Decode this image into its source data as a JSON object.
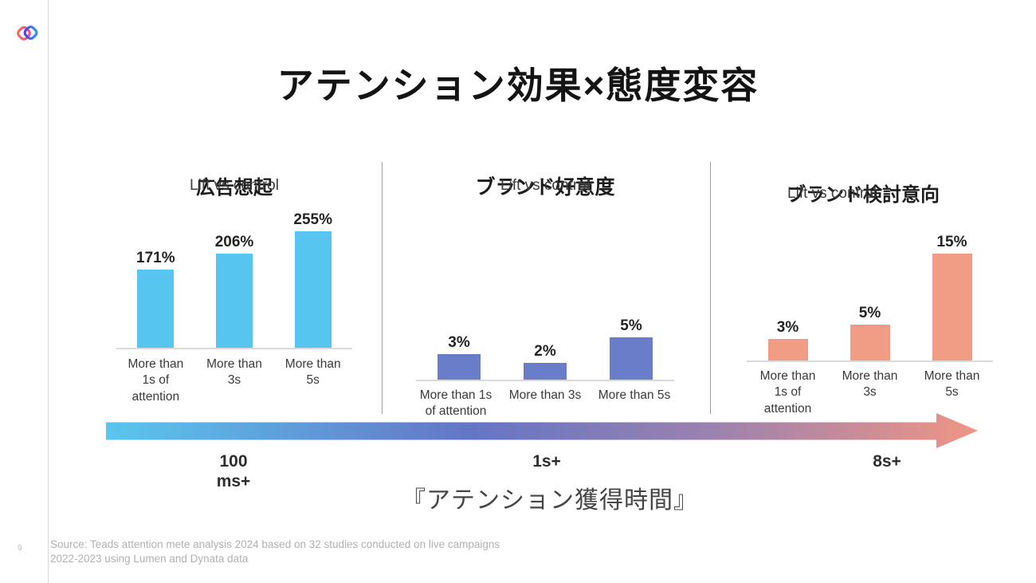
{
  "slide": {
    "title": "アテンション効果×態度変容",
    "page_number": "9",
    "footer": {
      "source_line1": "Source: Teads attention mete analysis 2024 based on 32 studies conducted on live campaigns",
      "source_line2": "2022-2023 using Lumen and Dynata data"
    }
  },
  "chart_data": [
    {
      "type": "bar",
      "title": "広告想起",
      "subtitle": "Lift vs control",
      "categories": [
        [
          "More than",
          "1s of",
          "attention"
        ],
        [
          "More than",
          "3s"
        ],
        [
          "More than",
          "5s"
        ]
      ],
      "values": [
        171,
        206,
        255
      ],
      "value_labels": [
        "171%",
        "206%",
        "255%"
      ],
      "unit": "%",
      "ylim": [
        0,
        255
      ],
      "bar_color": "#56C5EF",
      "grid": false,
      "legend": "none"
    },
    {
      "type": "bar",
      "title": "ブランド好意度",
      "subtitle": "Lift vs control",
      "categories": [
        [
          "More than 1s",
          "of attention"
        ],
        [
          "More than 3s"
        ],
        [
          "More than 5s"
        ]
      ],
      "values": [
        3,
        2,
        5
      ],
      "value_labels": [
        "3%",
        "2%",
        "5%"
      ],
      "unit": "%",
      "ylim": [
        0,
        5
      ],
      "bar_color": "#6A7DC9",
      "grid": false,
      "legend": "none"
    },
    {
      "type": "bar",
      "title": "ブランド検討意向",
      "subtitle": "Lift vs control",
      "categories": [
        [
          "More than",
          "1s of",
          "attention"
        ],
        [
          "More than",
          "3s"
        ],
        [
          "More than",
          "5s"
        ]
      ],
      "values": [
        3,
        5,
        15
      ],
      "value_labels": [
        "3%",
        "5%",
        "15%"
      ],
      "unit": "%",
      "ylim": [
        0,
        15
      ],
      "bar_color": "#F19D85",
      "grid": false,
      "legend": "none"
    }
  ],
  "timeline": {
    "milestones": [
      [
        "100",
        "ms+"
      ],
      [
        "1s+"
      ],
      [
        "8s+"
      ]
    ],
    "caption": "『アテンション獲得時間』",
    "arrow_gradient": [
      "#5AC6EE",
      "#6475C5",
      "#9D82AE",
      "#EF9584"
    ]
  },
  "logo": {
    "name": "teads-interlocked-loops",
    "left_loop_colors": [
      "#F7705A",
      "#E94F9C"
    ],
    "right_loop_colors": [
      "#5A3BD6",
      "#2E9BFD"
    ]
  }
}
